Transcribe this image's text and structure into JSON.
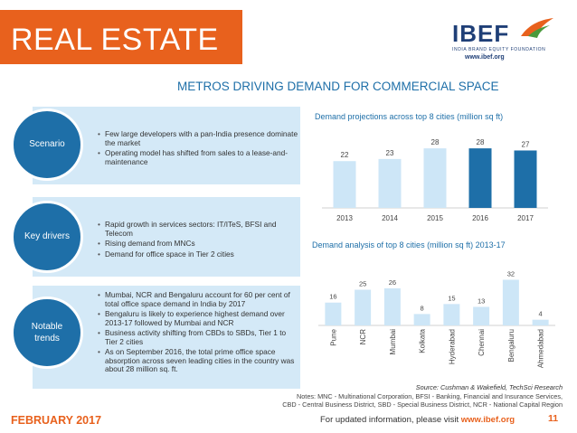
{
  "header": {
    "title": "REAL ESTATE",
    "logo": {
      "word": "IBEF",
      "subtitle": "INDIA BRAND EQUITY FOUNDATION",
      "url": "www.ibef.org"
    }
  },
  "section_title": "METROS DRIVING DEMAND FOR COMMERCIAL SPACE",
  "panels": [
    {
      "label": "Scenario",
      "bullets": [
        "Few large developers with a pan-India presence dominate the market",
        "Operating model has shifted from sales to a lease-and-maintenance"
      ]
    },
    {
      "label": "Key drivers",
      "bullets": [
        "Rapid growth in services sectors: IT/ITeS, BFSI and Telecom",
        "Rising demand from MNCs",
        "Demand for office space in Tier 2 cities"
      ]
    },
    {
      "label": "Notable trends",
      "bullets": [
        "Mumbai, NCR and Bengaluru account for 60 per cent of total office space demand in India by 2017",
        "Bengaluru is likely to experience highest demand over 2013-17 followed by Mumbai and NCR",
        "Business activity shifting from CBDs to SBDs, Tier 1 to Tier 2 cities",
        "As on September 2016, the total prime office space absorption across seven leading cities in the country was about 28 million sq. ft."
      ]
    }
  ],
  "chart_data": [
    {
      "type": "bar",
      "title": "Demand projections across top 8 cities (million sq ft)",
      "categories": [
        "2013",
        "2014",
        "2015",
        "2016",
        "2017"
      ],
      "values": [
        22,
        23,
        28,
        28,
        27
      ],
      "highlight": [
        false,
        false,
        false,
        true,
        true
      ],
      "ylim": [
        0,
        34
      ],
      "xlabel": "",
      "ylabel": "",
      "colors": {
        "normal": "#cde6f7",
        "highlight": "#1e6fa8"
      }
    },
    {
      "type": "bar",
      "title": "Demand analysis of top 8 cities (million sq ft) 2013-17",
      "categories": [
        "Pune",
        "NCR",
        "Mumbai",
        "Kolkata",
        "Hyderabad",
        "Chennai",
        "Bengaluru",
        "Ahmedabad"
      ],
      "values": [
        16,
        25,
        26,
        8,
        15,
        13,
        32,
        4
      ],
      "ylim": [
        0,
        38
      ],
      "xlabel": "",
      "ylabel": "",
      "colors": {
        "normal": "#cde6f7"
      }
    }
  ],
  "source": "Source: Cushman & Wakefield, TechSci Research",
  "notes": [
    "Notes: MNC - Multinational Corporation, BFSI - Banking, Financial and Insurance Services,",
    "CBD - Central Business District, SBD - Special Business District, NCR - National Capital Region"
  ],
  "footer": {
    "date": "FEBRUARY 2017",
    "text": "For updated information, please visit ",
    "link": "www.ibef.org",
    "page": "11"
  },
  "colors": {
    "brand_orange": "#e8611d",
    "brand_blue": "#1e6fa8",
    "panel_bg": "#d4e9f7"
  }
}
